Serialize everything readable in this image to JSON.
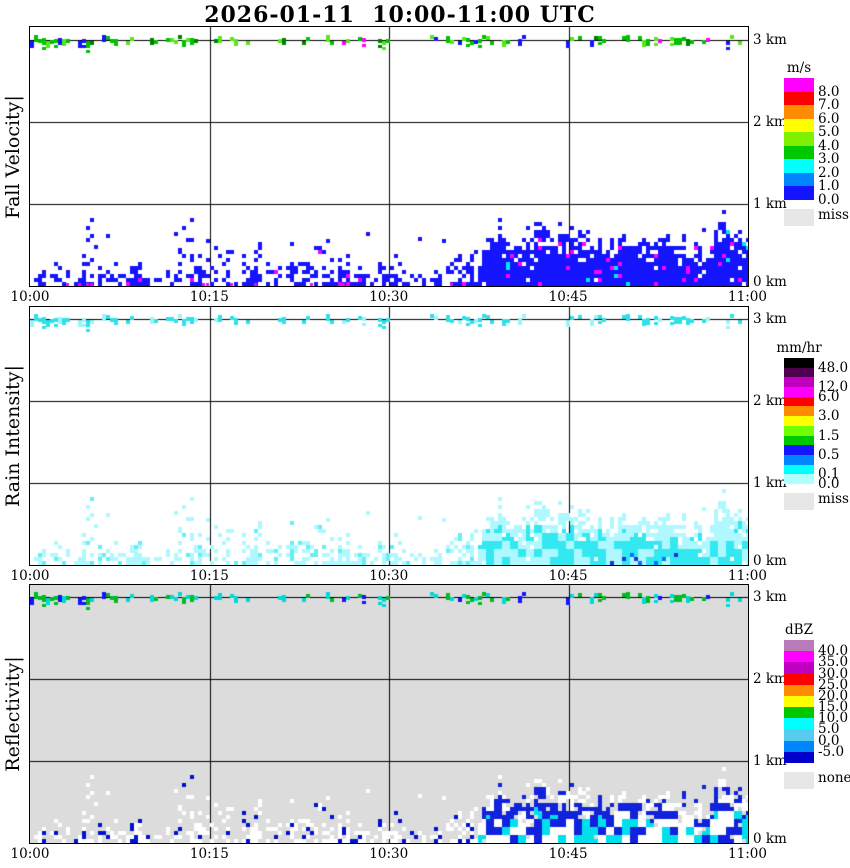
{
  "title": "2026-01-11  10:00-11:00 UTC",
  "x_ticks": [
    "10:00",
    "10:15",
    "10:30",
    "10:45",
    "11:00"
  ],
  "height_ticks": [
    "3 km",
    "2 km",
    "1 km",
    "0 km"
  ],
  "panels": [
    {
      "id": "fall-velocity",
      "ylabel": "Fall Velocity|",
      "legend_title": "m/s",
      "legend": [
        {
          "color": "#FF00FF",
          "label": "8.0"
        },
        {
          "color": "#FF0000",
          "label": "7.0"
        },
        {
          "color": "#FF8C00",
          "label": "6.0"
        },
        {
          "color": "#FFFF00",
          "label": "5.0"
        },
        {
          "color": "#7FF000",
          "label": "4.0"
        },
        {
          "color": "#00C800",
          "label": "3.0"
        },
        {
          "color": "#00FFFF",
          "label": "2.0"
        },
        {
          "color": "#0087FF",
          "label": "1.0"
        },
        {
          "color": "#1414FF",
          "label": "0.0"
        }
      ],
      "missing": {
        "color": "#E7E7E7",
        "label": "miss"
      }
    },
    {
      "id": "rain-intensity",
      "ylabel": "Rain Intensity|",
      "legend_title": "mm/hr",
      "legend": [
        {
          "color": "#000000",
          "label": "48.0"
        },
        {
          "color": "#500050",
          "label": ""
        },
        {
          "color": "#C000C0",
          "label": "12.0"
        },
        {
          "color": "#FF00FF",
          "label": "6.0"
        },
        {
          "color": "#FF0000",
          "label": ""
        },
        {
          "color": "#FF8C00",
          "label": "3.0"
        },
        {
          "color": "#FFFF00",
          "label": ""
        },
        {
          "color": "#70FF00",
          "label": "1.5"
        },
        {
          "color": "#00C800",
          "label": ""
        },
        {
          "color": "#1414FF",
          "label": "0.5"
        },
        {
          "color": "#0087FF",
          "label": ""
        },
        {
          "color": "#00FFFF",
          "label": "0.1"
        },
        {
          "color": "#AFFFFF",
          "label": "0.0"
        }
      ],
      "missing": {
        "color": "#E7E7E7",
        "label": "miss"
      }
    },
    {
      "id": "reflectivity",
      "ylabel": "Reflectivity|",
      "legend_title": "dBZ",
      "legend": [
        {
          "color": "#B87AB8",
          "label": "40.0"
        },
        {
          "color": "#FF00FF",
          "label": "35.0"
        },
        {
          "color": "#C000C0",
          "label": "30.0"
        },
        {
          "color": "#FF0000",
          "label": "25.0"
        },
        {
          "color": "#FF8C00",
          "label": "20.0"
        },
        {
          "color": "#FFFF00",
          "label": "15.0"
        },
        {
          "color": "#00C800",
          "label": "10.0"
        },
        {
          "color": "#00FFFF",
          "label": "5.0"
        },
        {
          "color": "#58CCEE",
          "label": "0.0"
        },
        {
          "color": "#0087FF",
          "label": "-5.0"
        },
        {
          "color": "#0000C8",
          "label": ""
        }
      ],
      "missing": {
        "color": "#E7E7E7",
        "label": "none"
      },
      "plot_background": "#DCDCDC"
    }
  ],
  "chart_data": [
    {
      "type": "heatmap",
      "title": "Fall Velocity",
      "unit": "m/s",
      "x_range": [
        "10:00",
        "11:00"
      ],
      "x_ticks": [
        "10:00",
        "10:15",
        "10:30",
        "10:45",
        "11:00"
      ],
      "y_range_km": [
        0,
        3.16
      ],
      "y_grid_km": [
        1,
        2,
        3
      ],
      "legend_values": [
        8.0,
        7.0,
        6.0,
        5.0,
        4.0,
        3.0,
        2.0,
        1.0,
        0.0
      ],
      "cloud_strip": {
        "height_km": 3.0,
        "coverage": 0.45,
        "typical_values_m_s": "3-4",
        "colors": [
          "#00C000",
          "#55E818",
          "#008000",
          "#1414FF",
          "#FF00FF"
        ]
      },
      "surface_layer": {
        "echo_top_km_by_minute": [
          0.28,
          0.22,
          0.3,
          0.18,
          0.22,
          1.15,
          0.18,
          0.3,
          0.22,
          0.35,
          0.3,
          0.25,
          0.4,
          0.9,
          0.45,
          0.5,
          0.6,
          0.45,
          0.35,
          0.5,
          0.55,
          0.45,
          0.5,
          0.45,
          0.6,
          0.45,
          0.4,
          0.35,
          0.45,
          0.35,
          0.4,
          0.35,
          0.3,
          0.25,
          0.3,
          0.45,
          0.5,
          0.4,
          0.5,
          0.75,
          0.55,
          0.6,
          0.65,
          0.7,
          0.75,
          0.7,
          0.65,
          0.6,
          0.65,
          0.6,
          0.55,
          0.5,
          0.55,
          0.6,
          0.65,
          0.6,
          0.55,
          0.7,
          0.8,
          0.75,
          0.7
        ],
        "dense_from_minute": 38,
        "dominant_value_m_s": "0-1",
        "dominant_color": "#1414FF",
        "fleck_values": {
          "8.0+": "#FF00FF",
          "2-3": "#00E8F0"
        }
      },
      "spikes": [
        {
          "minute": 5,
          "top_km": 1.15
        },
        {
          "minute": 13,
          "top_km": 0.9
        }
      ]
    },
    {
      "type": "heatmap",
      "title": "Rain Intensity",
      "unit": "mm/hr",
      "x_range": [
        "10:00",
        "11:00"
      ],
      "x_ticks": [
        "10:00",
        "10:15",
        "10:30",
        "10:45",
        "11:00"
      ],
      "y_range_km": [
        0,
        3.16
      ],
      "y_grid_km": [
        1,
        2,
        3
      ],
      "legend_values": [
        48.0,
        12.0,
        6.0,
        3.0,
        1.5,
        0.5,
        0.1,
        0.0
      ],
      "cloud_strip": {
        "height_km": 3.0,
        "coverage": 0.45,
        "typical_values_mm_hr": "0.1-0.5",
        "colors": [
          "#2FE0EA",
          "#9CF4F8"
        ]
      },
      "silhouette_matches_panel": "Fall Velocity",
      "surface_layer": {
        "dominant_value_mm_hr": "0.0-0.1",
        "dominant_color": "#AFF8FF",
        "patch_values": {
          "0.1-0.5": "#33E8F0",
          "0.5-1.5 spots after 10:43": "#0077FF"
        }
      }
    },
    {
      "type": "heatmap",
      "title": "Reflectivity",
      "unit": "dBZ",
      "x_range": [
        "10:00",
        "11:00"
      ],
      "x_ticks": [
        "10:00",
        "10:15",
        "10:30",
        "10:45",
        "11:00"
      ],
      "y_range_km": [
        0,
        3.16
      ],
      "y_grid_km": [
        1,
        2,
        3
      ],
      "legend_values": [
        40.0,
        35.0,
        30.0,
        25.0,
        20.0,
        15.0,
        10.0,
        5.0,
        0.0,
        -5.0
      ],
      "background_value": "none (gray fills whole panel)",
      "cloud_strip": {
        "height_km": 3.0,
        "coverage": 0.45,
        "typical_values_dBZ": "5-15",
        "colors": [
          "#00BB22",
          "#00D8D8",
          "#1414FF"
        ]
      },
      "silhouette_matches_panel": "Fall Velocity",
      "surface_layer": {
        "weak_echo_color": "#FFFFFF",
        "patch_values": {
          "-5-0": "#1122DD",
          "5-10": "#00E0EC"
        },
        "dense_from_minute": 38
      }
    }
  ]
}
